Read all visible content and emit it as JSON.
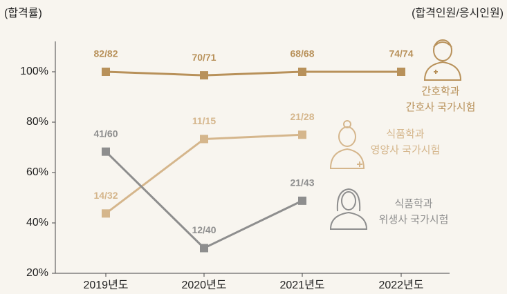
{
  "chart_data": {
    "type": "line",
    "y_label": "(합격률)",
    "y2_label": "(합격인원/응시인원)",
    "categories": [
      "2019년도",
      "2020년도",
      "2021년도",
      "2022년도"
    ],
    "ylim": [
      20,
      100
    ],
    "yticks": [
      {
        "value": 20,
        "label": "20%"
      },
      {
        "value": 40,
        "label": "40%"
      },
      {
        "value": 60,
        "label": "60%"
      },
      {
        "value": 80,
        "label": "80%"
      },
      {
        "value": 100,
        "label": "100%"
      }
    ],
    "series": [
      {
        "name": [
          "간호학과",
          "간호사 국가시험"
        ],
        "color": "#b8915a",
        "values": [
          100,
          98.6,
          100,
          100
        ],
        "value_labels": [
          "82/82",
          "70/71",
          "68/68",
          "74/74"
        ]
      },
      {
        "name": [
          "식품학과",
          "영양사 국가시험"
        ],
        "color": "#d5b68c",
        "values": [
          43.75,
          73.3,
          75,
          null
        ],
        "value_labels": [
          "14/32",
          "11/15",
          "21/28",
          null
        ]
      },
      {
        "name": [
          "식품학과",
          "위생사 국가시험"
        ],
        "color": "#8e8e8e",
        "values": [
          68.3,
          30,
          48.8,
          null
        ],
        "value_labels": [
          "41/60",
          "12/40",
          "21/43",
          null
        ]
      }
    ]
  }
}
